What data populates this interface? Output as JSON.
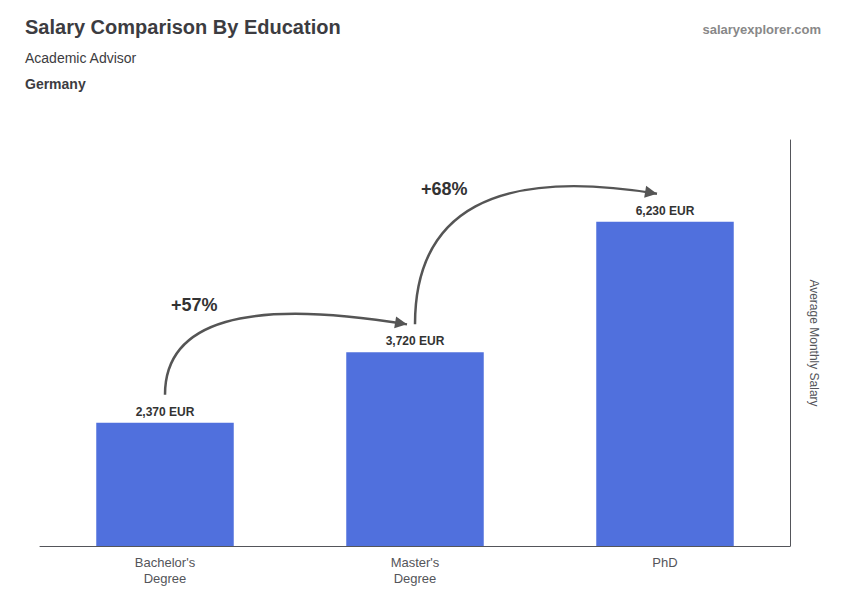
{
  "chart_data": {
    "type": "bar",
    "title": "Salary Comparison By Education",
    "subtitle": "Academic Advisor",
    "country": "Germany",
    "watermark": "salaryexplorer.com",
    "ylabel": "Average Monthly Salary",
    "categories": [
      "Bachelor's\nDegree",
      "Master's\nDegree",
      "PhD"
    ],
    "values": [
      2370,
      3720,
      6230
    ],
    "value_labels": [
      "2,370 EUR",
      "3,720 EUR",
      "6,230 EUR"
    ],
    "data_labels": true,
    "annotations": [
      {
        "text": "+57%",
        "from": "Bachelor's\nDegree",
        "to": "Master's\nDegree"
      },
      {
        "text": "+68%",
        "from": "Master's\nDegree",
        "to": "PhD"
      }
    ],
    "ylim": [
      0,
      7800
    ],
    "yticks": [],
    "tick_labels": "x",
    "grid": false
  }
}
